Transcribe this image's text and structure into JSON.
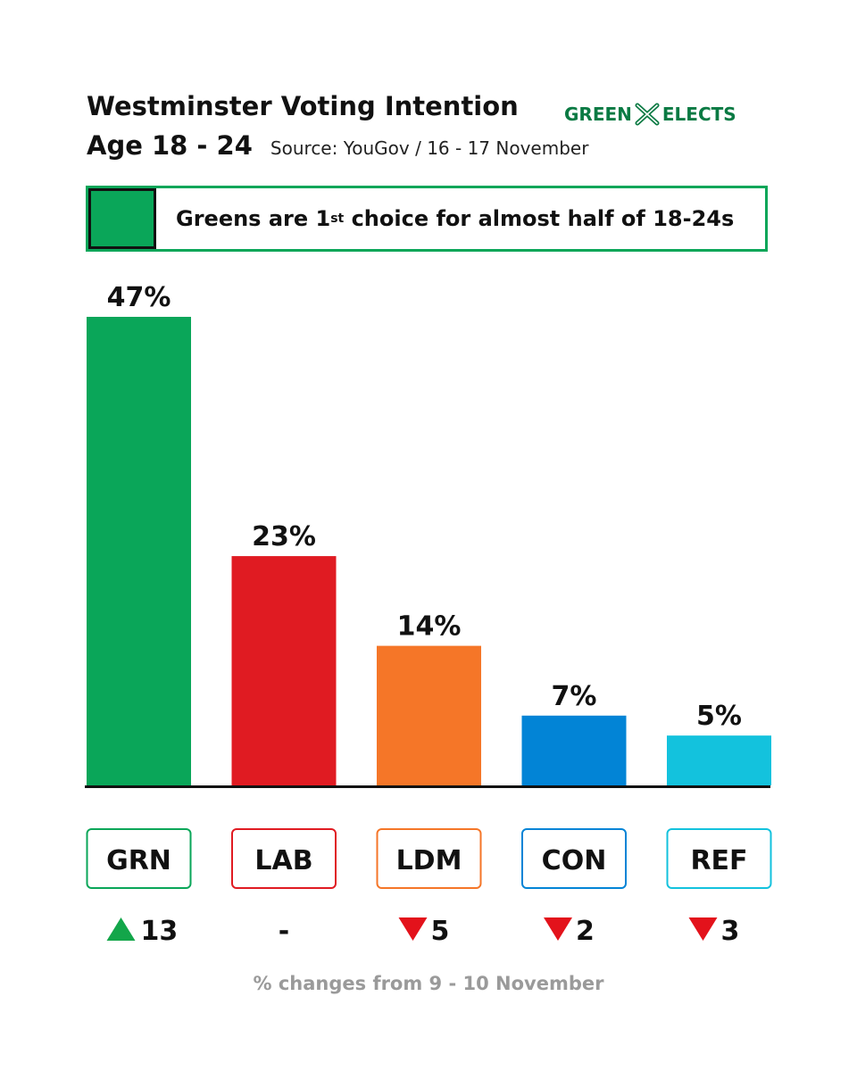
{
  "header": {
    "title": "Westminster Voting Intention",
    "age": "Age 18 - 24",
    "source": "Source: YouGov / 16 - 17 November",
    "logo_left": "GREEN",
    "logo_right": "ELECTS",
    "logo_color": "#0a7a43"
  },
  "headline": {
    "text_before": "Greens are 1",
    "superscript": "st",
    "text_after": " choice for almost half of 18-24s",
    "swatch_color": "#0aa659"
  },
  "chart_data": {
    "type": "bar",
    "categories": [
      "GRN",
      "LAB",
      "LDM",
      "CON",
      "REF"
    ],
    "values": [
      47,
      23,
      14,
      7,
      5
    ],
    "value_labels": [
      "47%",
      "23%",
      "14%",
      "7%",
      "5%"
    ],
    "colors": [
      "#0aa659",
      "#e01b22",
      "#f57628",
      "#0284d6",
      "#13c2dd"
    ],
    "changes": [
      {
        "direction": "up",
        "value": "13"
      },
      {
        "direction": "none",
        "value": "-"
      },
      {
        "direction": "down",
        "value": "5"
      },
      {
        "direction": "down",
        "value": "2"
      },
      {
        "direction": "down",
        "value": "3"
      }
    ],
    "up_color": "#13a64a",
    "down_color": "#e3121b",
    "ylim": [
      0,
      47
    ]
  },
  "footnote": "% changes from 9 - 10 November"
}
